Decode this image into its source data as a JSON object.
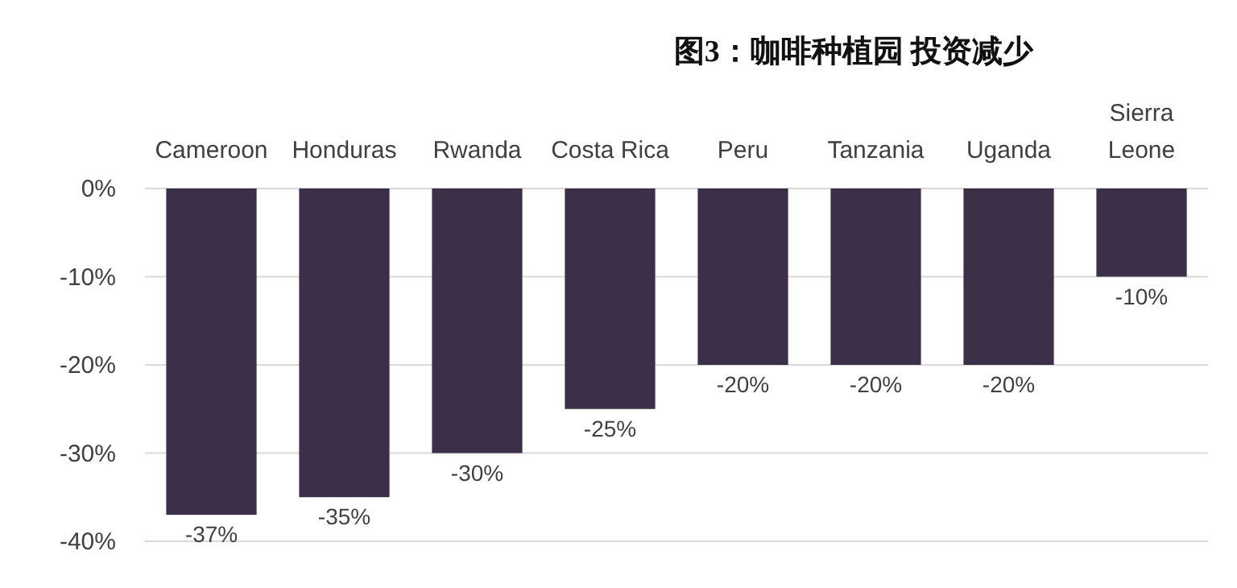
{
  "chart_data": {
    "type": "bar",
    "title": "图3：咖啡种植园 投资减少",
    "categories": [
      "Cameroon",
      "Honduras",
      "Rwanda",
      "Costa Rica",
      "Peru",
      "Tanzania",
      "Uganda",
      "Sierra Leone"
    ],
    "values": [
      -37,
      -35,
      -30,
      -25,
      -20,
      -20,
      -20,
      -10
    ],
    "value_labels": [
      "-37%",
      "-35%",
      "-30%",
      "-25%",
      "-20%",
      "-20%",
      "-20%",
      "-10%"
    ],
    "color": "#3b3047",
    "ylim": [
      -40,
      0
    ],
    "yticks": [
      {
        "value": 0,
        "label": "0%"
      },
      {
        "value": -10,
        "label": "-10%"
      },
      {
        "value": -20,
        "label": "-20%"
      },
      {
        "value": -30,
        "label": "-30%"
      },
      {
        "value": -40,
        "label": "-40%"
      }
    ],
    "grid": "y"
  }
}
